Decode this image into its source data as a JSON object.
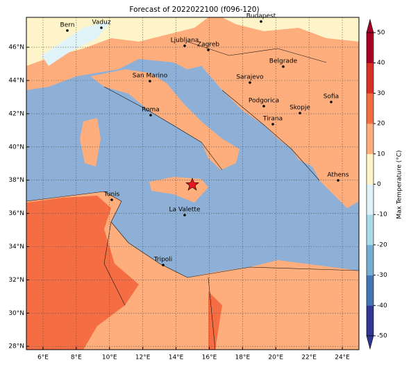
{
  "title": "Forecast of 2022022100 (f096-120)",
  "map": {
    "xlim": [
      5,
      25
    ],
    "ylim": [
      27.8,
      47.8
    ],
    "lon_ticks": [
      {
        "value": 6,
        "label": "6°E"
      },
      {
        "value": 8,
        "label": "8°E"
      },
      {
        "value": 10,
        "label": "10°E"
      },
      {
        "value": 12,
        "label": "12°E"
      },
      {
        "value": 14,
        "label": "14°E"
      },
      {
        "value": 16,
        "label": "16°E"
      },
      {
        "value": 18,
        "label": "18°E"
      },
      {
        "value": 20,
        "label": "20°E"
      },
      {
        "value": 22,
        "label": "22°E"
      },
      {
        "value": 24,
        "label": "24°E"
      }
    ],
    "lat_ticks": [
      {
        "value": 28,
        "label": "28°N"
      },
      {
        "value": 30,
        "label": "30°N"
      },
      {
        "value": 32,
        "label": "32°N"
      },
      {
        "value": 34,
        "label": "34°N"
      },
      {
        "value": 36,
        "label": "36°N"
      },
      {
        "value": 38,
        "label": "38°N"
      },
      {
        "value": 40,
        "label": "40°N"
      },
      {
        "value": 42,
        "label": "42°N"
      },
      {
        "value": 44,
        "label": "44°N"
      },
      {
        "value": 46,
        "label": "46°N"
      }
    ],
    "cities": [
      "Bern",
      "Vaduz",
      "Budapest",
      "Ljubljana",
      "Zagreb",
      "Belgrade",
      "San Marino",
      "Sarajevo",
      "Sofia",
      "Podgorica",
      "Skopje",
      "Roma",
      "Tirana",
      "Athens",
      "Tunis",
      "La Valette",
      "Tripoli"
    ]
  },
  "colorbar": {
    "label": "Max Temperature (°C)",
    "lim": [
      -50,
      50
    ],
    "ticks": [
      -50,
      -40,
      -30,
      -20,
      -10,
      0,
      10,
      20,
      30,
      40,
      50
    ],
    "colors": [
      "#313695",
      "#4575b4",
      "#74add1",
      "#abd9e9",
      "#e0f3f8",
      "#fdf5c9",
      "#fdae7c",
      "#f46d43",
      "#d73027",
      "#a50026"
    ]
  }
}
